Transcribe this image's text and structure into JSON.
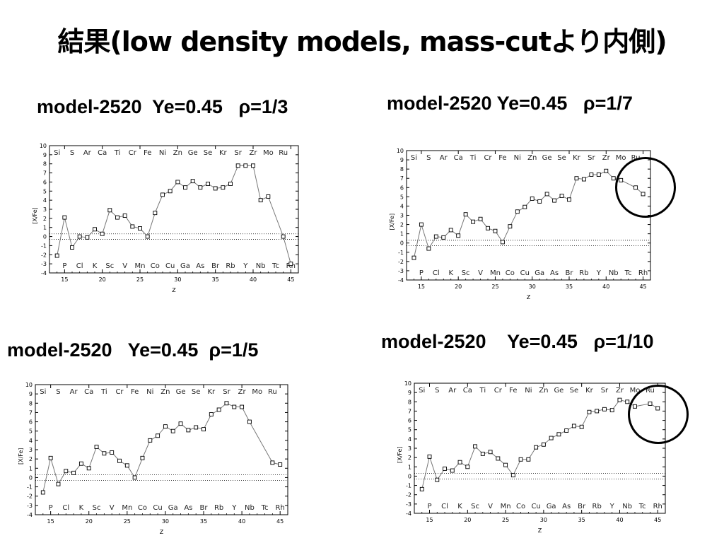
{
  "title": "結果(low density models, mass-cutより内側)",
  "chart_data": [
    {
      "type": "line",
      "title": "model-2520  Ye=0.45   ρ=1/3",
      "xlabel": "Z",
      "ylabel": "[X/Fe]",
      "xlim": [
        13,
        46
      ],
      "ylim": [
        -4,
        10
      ],
      "x_ticks": [
        15,
        20,
        25,
        30,
        35,
        40,
        45
      ],
      "y_ticks": [
        -4,
        -3,
        -2,
        -1,
        0,
        1,
        2,
        3,
        4,
        5,
        6,
        7,
        8,
        9,
        10
      ],
      "top_elements": [
        "Si",
        "S",
        "Ar",
        "Ca",
        "Ti",
        "Cr",
        "Fe",
        "Ni",
        "Zn",
        "Ge",
        "Se",
        "Kr",
        "Sr",
        "Zr",
        "Mo",
        "Ru"
      ],
      "bottom_elements": [
        "P",
        "Cl",
        "K",
        "Sc",
        "V",
        "Mn",
        "Co",
        "Cu",
        "Ga",
        "As",
        "Br",
        "Rb",
        "Y",
        "Nb",
        "Tc",
        "Rh"
      ],
      "reference_lines": [
        0.3,
        -0.3
      ],
      "x": [
        14,
        15,
        16,
        17,
        18,
        19,
        20,
        21,
        22,
        23,
        24,
        25,
        26,
        27,
        28,
        29,
        30,
        31,
        32,
        33,
        34,
        35,
        36,
        37,
        38,
        39,
        40,
        41,
        42,
        44,
        45
      ],
      "y": [
        -2.1,
        2.1,
        -1.2,
        0,
        -0.1,
        0.8,
        0.3,
        2.9,
        2.1,
        2.3,
        1.1,
        0.9,
        0,
        2.6,
        4.6,
        5.0,
        6.0,
        5.4,
        6.1,
        5.4,
        5.8,
        5.3,
        5.4,
        5.8,
        7.8,
        7.8,
        7.8,
        4.0,
        4.4,
        0,
        -3.0
      ]
    },
    {
      "type": "line",
      "title": "model-2520 Ye=0.45   ρ=1/7",
      "xlabel": "Z",
      "ylabel": "[X/Fe]",
      "xlim": [
        13,
        46
      ],
      "ylim": [
        -4,
        10
      ],
      "x_ticks": [
        15,
        20,
        25,
        30,
        35,
        40,
        45
      ],
      "y_ticks": [
        -4,
        -3,
        -2,
        -1,
        0,
        1,
        2,
        3,
        4,
        5,
        6,
        7,
        8,
        9,
        10
      ],
      "top_elements": [
        "Si",
        "S",
        "Ar",
        "Ca",
        "Ti",
        "Cr",
        "Fe",
        "Ni",
        "Zn",
        "Ge",
        "Se",
        "Kr",
        "Sr",
        "Zr",
        "Mo",
        "Ru"
      ],
      "bottom_elements": [
        "P",
        "Cl",
        "K",
        "Sc",
        "V",
        "Mn",
        "Co",
        "Cu",
        "Ga",
        "As",
        "Br",
        "Rb",
        "Y",
        "Nb",
        "Tc",
        "Rh"
      ],
      "reference_lines": [
        0.3,
        -0.3
      ],
      "x": [
        14,
        15,
        16,
        17,
        18,
        19,
        20,
        21,
        22,
        23,
        24,
        25,
        26,
        27,
        28,
        29,
        30,
        31,
        32,
        33,
        34,
        35,
        36,
        37,
        38,
        39,
        40,
        41,
        42,
        44,
        45
      ],
      "y": [
        -1.6,
        2.0,
        -0.6,
        0.7,
        0.6,
        1.4,
        0.8,
        3.1,
        2.3,
        2.6,
        1.6,
        1.3,
        0.1,
        1.8,
        3.4,
        3.9,
        4.8,
        4.5,
        5.3,
        4.6,
        5.1,
        4.7,
        7.0,
        6.9,
        7.4,
        7.4,
        7.8,
        7.0,
        6.8,
        6.0,
        5.3
      ]
    },
    {
      "type": "line",
      "title": "model-2520   Ye=0.45  ρ=1/5",
      "xlabel": "Z",
      "ylabel": "[X/Fe]",
      "xlim": [
        13,
        46
      ],
      "ylim": [
        -4,
        10
      ],
      "x_ticks": [
        15,
        20,
        25,
        30,
        35,
        40,
        45
      ],
      "y_ticks": [
        -4,
        -3,
        -2,
        -1,
        0,
        1,
        2,
        3,
        4,
        5,
        6,
        7,
        8,
        9,
        10
      ],
      "top_elements": [
        "Si",
        "S",
        "Ar",
        "Ca",
        "Ti",
        "Cr",
        "Fe",
        "Ni",
        "Zn",
        "Ge",
        "Se",
        "Kr",
        "Sr",
        "Zr",
        "Mo",
        "Ru"
      ],
      "bottom_elements": [
        "P",
        "Cl",
        "K",
        "Sc",
        "V",
        "Mn",
        "Co",
        "Cu",
        "Ga",
        "As",
        "Br",
        "Rb",
        "Y",
        "Nb",
        "Tc",
        "Rh"
      ],
      "reference_lines": [
        0.3,
        -0.3
      ],
      "x": [
        14,
        15,
        16,
        17,
        18,
        19,
        20,
        21,
        22,
        23,
        24,
        25,
        26,
        27,
        28,
        29,
        30,
        31,
        32,
        33,
        34,
        35,
        36,
        37,
        38,
        39,
        40,
        41,
        44,
        45
      ],
      "y": [
        -1.6,
        2.1,
        -0.7,
        0.7,
        0.5,
        1.5,
        1.0,
        3.3,
        2.6,
        2.7,
        1.8,
        1.3,
        0.0,
        2.1,
        4.0,
        4.5,
        5.5,
        5.0,
        5.8,
        5.1,
        5.4,
        5.2,
        6.8,
        7.3,
        8.0,
        7.6,
        7.6,
        6.0,
        1.6,
        1.4
      ]
    },
    {
      "type": "line",
      "title": "model-2520    Ye=0.45   ρ=1/10",
      "xlabel": "Z",
      "ylabel": "[X/Fe]",
      "xlim": [
        13,
        46
      ],
      "ylim": [
        -4,
        10
      ],
      "x_ticks": [
        15,
        20,
        25,
        30,
        35,
        40,
        45
      ],
      "y_ticks": [
        -4,
        -3,
        -2,
        -1,
        0,
        1,
        2,
        3,
        4,
        5,
        6,
        7,
        8,
        9,
        10
      ],
      "top_elements": [
        "Si",
        "S",
        "Ar",
        "Ca",
        "Ti",
        "Cr",
        "Fe",
        "Ni",
        "Zn",
        "Ge",
        "Se",
        "Kr",
        "Sr",
        "Zr",
        "Mo",
        "Ru"
      ],
      "bottom_elements": [
        "P",
        "Cl",
        "K",
        "Sc",
        "V",
        "Mn",
        "Co",
        "Cu",
        "Ga",
        "As",
        "Br",
        "Rb",
        "Y",
        "Nb",
        "Tc",
        "Rh"
      ],
      "reference_lines": [
        0.3,
        -0.3
      ],
      "x": [
        14,
        15,
        16,
        17,
        18,
        19,
        20,
        21,
        22,
        23,
        24,
        25,
        26,
        27,
        28,
        29,
        30,
        31,
        32,
        33,
        34,
        35,
        36,
        37,
        38,
        39,
        40,
        41,
        42,
        44,
        45
      ],
      "y": [
        -1.4,
        2.1,
        -0.4,
        0.8,
        0.6,
        1.5,
        1.0,
        3.2,
        2.4,
        2.6,
        1.9,
        1.2,
        0.1,
        1.8,
        1.8,
        3.1,
        3.4,
        4.1,
        4.5,
        4.9,
        5.4,
        5.3,
        6.9,
        7.0,
        7.2,
        7.1,
        8.2,
        8.0,
        7.5,
        7.8,
        7.3
      ]
    }
  ]
}
